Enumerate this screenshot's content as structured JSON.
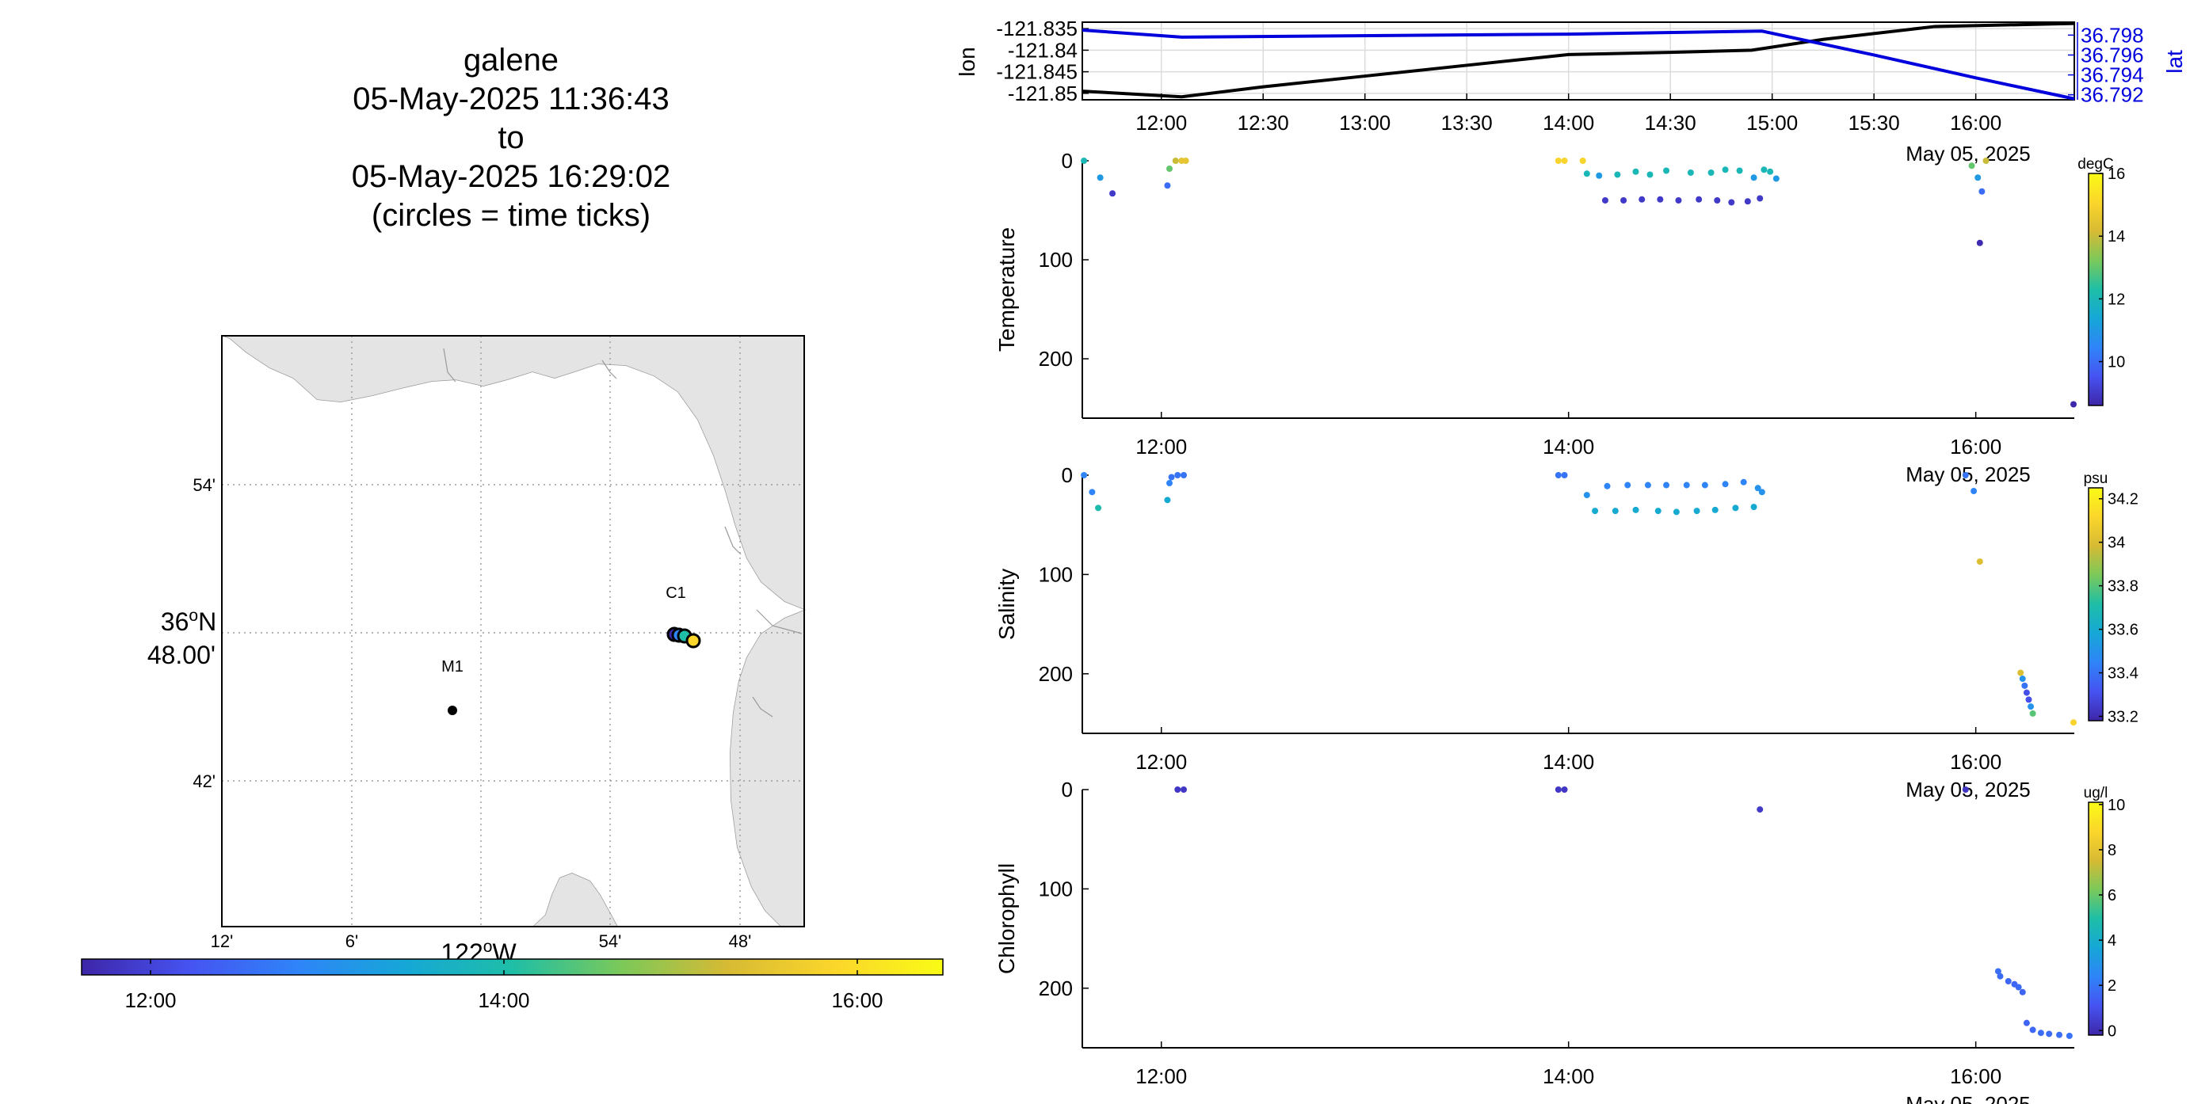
{
  "title": {
    "lines": [
      "galene",
      "05-May-2025 11:36:43",
      "to",
      "05-May-2025 16:29:02",
      "(circles = time ticks)"
    ]
  },
  "colors": {
    "lon_line": "#000000",
    "lat_line": "#0000dd",
    "land": "#e4e4e4",
    "colormap": [
      "#3e26a8",
      "#4653f1",
      "#2f84f8",
      "#16a7d7",
      "#1ebea7",
      "#7ac95a",
      "#d7ba34",
      "#fbd62b",
      "#f9fb15"
    ]
  },
  "map": {
    "lat_ticks": [
      "54'",
      "48.00'",
      "42'"
    ],
    "lat_degree_label": "36",
    "lat_degree_suffix": "N",
    "lon_ticks": [
      "12'",
      "6'",
      "54'",
      "48'"
    ],
    "lon_degree_label": "122",
    "lon_degree_suffix": "W",
    "stations": [
      {
        "label": "M1"
      },
      {
        "label": "C1"
      }
    ],
    "time_colorbar_ticks": [
      "12:00",
      "14:00",
      "16:00"
    ]
  },
  "chart_data": [
    {
      "type": "line",
      "ylabel": "lon",
      "ylabel_right": "lat",
      "x_ticks": [
        "12:00",
        "12:30",
        "13:00",
        "13:30",
        "14:00",
        "14:30",
        "15:00",
        "15:30",
        "16:00"
      ],
      "x_date_label": "May 05, 2025",
      "xlim_hours": [
        11.6119,
        16.4839
      ],
      "y_ticks": [
        "-121.835",
        "-121.84",
        "-121.845",
        "-121.85"
      ],
      "ylim": [
        -121.8515,
        -121.8335
      ],
      "y_right_ticks": [
        "36.798",
        "36.796",
        "36.794",
        "36.792"
      ],
      "ylim_right": [
        36.7915,
        36.7993
      ],
      "grid": true,
      "series": [
        {
          "axis": "left",
          "x_hours": [
            11.612,
            12.1,
            12.5,
            13.0,
            13.5,
            14.0,
            14.5,
            14.9,
            15.25,
            15.8,
            16.484
          ],
          "values": [
            -121.8495,
            -121.8508,
            -121.8485,
            -121.846,
            -121.8435,
            -121.841,
            -121.8405,
            -121.84,
            -121.8375,
            -121.8345,
            -121.8338
          ]
        },
        {
          "axis": "right",
          "x_hours": [
            11.612,
            12.1,
            14.0,
            14.95,
            15.5,
            16.0,
            16.484
          ],
          "values": [
            36.7985,
            36.7978,
            36.7981,
            36.7984,
            36.796,
            36.7937,
            36.7916
          ]
        }
      ]
    },
    {
      "type": "scatter",
      "ylabel": "Temperature",
      "colorbar_unit": "degC",
      "colorbar_ticks": [
        "16",
        "14",
        "12",
        "10"
      ],
      "clim": [
        8.6,
        16.0
      ],
      "x_ticks": [
        "12:00",
        "14:00",
        "16:00"
      ],
      "x_date_label": "May 05, 2025",
      "xlim_hours": [
        11.6119,
        16.4839
      ],
      "y_ticks": [
        "0",
        "100",
        "200"
      ],
      "ylim": [
        0,
        260
      ],
      "reversed_y": true,
      "points": [
        [
          11.62,
          0,
          12
        ],
        [
          11.7,
          17,
          11
        ],
        [
          11.76,
          33,
          9
        ],
        [
          12.03,
          25,
          10
        ],
        [
          12.04,
          8,
          13
        ],
        [
          12.07,
          0,
          14
        ],
        [
          12.1,
          0,
          14.5
        ],
        [
          12.12,
          0,
          14.5
        ],
        [
          13.95,
          0,
          15
        ],
        [
          13.98,
          0,
          15
        ],
        [
          14.07,
          0,
          15
        ],
        [
          14.09,
          13,
          12
        ],
        [
          14.15,
          15,
          11
        ],
        [
          14.18,
          40,
          9
        ],
        [
          14.24,
          14,
          12
        ],
        [
          14.27,
          40,
          9
        ],
        [
          14.33,
          11,
          12
        ],
        [
          14.36,
          39,
          9
        ],
        [
          14.4,
          14,
          12
        ],
        [
          14.45,
          39,
          9
        ],
        [
          14.48,
          10,
          12
        ],
        [
          14.54,
          40,
          9
        ],
        [
          14.6,
          12,
          12
        ],
        [
          14.64,
          39,
          9
        ],
        [
          14.7,
          12,
          12
        ],
        [
          14.73,
          40,
          9
        ],
        [
          14.77,
          9,
          12
        ],
        [
          14.8,
          42,
          9
        ],
        [
          14.84,
          10,
          12
        ],
        [
          14.88,
          41,
          9
        ],
        [
          14.91,
          17,
          11
        ],
        [
          14.94,
          38,
          9
        ],
        [
          14.96,
          9,
          12
        ],
        [
          14.99,
          11,
          12
        ],
        [
          15.02,
          18,
          11
        ],
        [
          16.05,
          0,
          14
        ],
        [
          15.98,
          5,
          13
        ],
        [
          16.01,
          17,
          11
        ],
        [
          16.03,
          31,
          10
        ],
        [
          16.02,
          83,
          8.7
        ],
        [
          16.48,
          246,
          8.6
        ]
      ]
    },
    {
      "type": "scatter",
      "ylabel": "Salinity",
      "colorbar_unit": "psu",
      "colorbar_ticks": [
        "34.2",
        "34",
        "33.8",
        "33.6",
        "33.4",
        "33.2"
      ],
      "clim": [
        33.18,
        34.25
      ],
      "x_ticks": [
        "12:00",
        "14:00",
        "16:00"
      ],
      "x_date_label": "May 05, 2025",
      "xlim_hours": [
        11.6119,
        16.4839
      ],
      "y_ticks": [
        "0",
        "100",
        "200"
      ],
      "ylim": [
        0,
        260
      ],
      "reversed_y": true,
      "points": [
        [
          11.62,
          0,
          33.45
        ],
        [
          11.66,
          17,
          33.45
        ],
        [
          11.69,
          33,
          33.7
        ],
        [
          12.03,
          25,
          33.6
        ],
        [
          12.04,
          8,
          33.45
        ],
        [
          12.05,
          2,
          33.4
        ],
        [
          12.08,
          0,
          33.4
        ],
        [
          12.11,
          0,
          33.4
        ],
        [
          13.95,
          0,
          33.4
        ],
        [
          13.98,
          0,
          33.4
        ],
        [
          14.09,
          20,
          33.5
        ],
        [
          14.13,
          36,
          33.6
        ],
        [
          14.19,
          11,
          33.45
        ],
        [
          14.23,
          36,
          33.6
        ],
        [
          14.29,
          10,
          33.45
        ],
        [
          14.33,
          35,
          33.6
        ],
        [
          14.39,
          10,
          33.45
        ],
        [
          14.44,
          36,
          33.6
        ],
        [
          14.48,
          10,
          33.45
        ],
        [
          14.53,
          37,
          33.6
        ],
        [
          14.58,
          10,
          33.45
        ],
        [
          14.63,
          36,
          33.6
        ],
        [
          14.67,
          10,
          33.45
        ],
        [
          14.72,
          35,
          33.6
        ],
        [
          14.77,
          9,
          33.45
        ],
        [
          14.82,
          33,
          33.6
        ],
        [
          14.86,
          7,
          33.45
        ],
        [
          14.91,
          32,
          33.6
        ],
        [
          14.93,
          13,
          33.5
        ],
        [
          14.95,
          17,
          33.5
        ],
        [
          15.95,
          0,
          33.4
        ],
        [
          15.99,
          16,
          33.45
        ],
        [
          16.02,
          87,
          34.0
        ],
        [
          16.22,
          199,
          34.0
        ],
        [
          16.23,
          205,
          33.5
        ],
        [
          16.24,
          212,
          33.4
        ],
        [
          16.25,
          219,
          33.3
        ],
        [
          16.26,
          226,
          33.3
        ],
        [
          16.27,
          233,
          33.5
        ],
        [
          16.28,
          240,
          33.8
        ],
        [
          16.48,
          249,
          34.1
        ]
      ]
    },
    {
      "type": "scatter",
      "ylabel": "Chlorophyll",
      "colorbar_unit": "ug/l",
      "colorbar_ticks": [
        "10",
        "8",
        "6",
        "4",
        "2",
        "0"
      ],
      "clim": [
        -0.2,
        10.1
      ],
      "x_ticks": [
        "12:00",
        "14:00",
        "16:00"
      ],
      "x_date_label": "May 05, 2025",
      "xlim_hours": [
        11.6119,
        16.4839
      ],
      "y_ticks": [
        "0",
        "100",
        "200"
      ],
      "ylim": [
        0,
        260
      ],
      "reversed_y": true,
      "points": [
        [
          12.08,
          0,
          0.3
        ],
        [
          12.11,
          0,
          0.3
        ],
        [
          13.95,
          0,
          0.3
        ],
        [
          13.98,
          0,
          0.3
        ],
        [
          14.94,
          20,
          0.4
        ],
        [
          15.95,
          0,
          0.3
        ],
        [
          16.11,
          183,
          1.8
        ],
        [
          16.12,
          188,
          1.7
        ],
        [
          16.16,
          193,
          1.6
        ],
        [
          16.19,
          196,
          1.6
        ],
        [
          16.21,
          199,
          1.7
        ],
        [
          16.23,
          204,
          1.5
        ],
        [
          16.25,
          235,
          1.5
        ],
        [
          16.28,
          242,
          1.6
        ],
        [
          16.32,
          245,
          1.7
        ],
        [
          16.36,
          246,
          1.7
        ],
        [
          16.41,
          247,
          1.8
        ],
        [
          16.46,
          248,
          1.9
        ]
      ]
    }
  ]
}
